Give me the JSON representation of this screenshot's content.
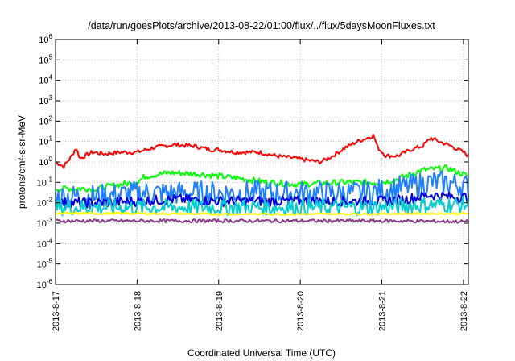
{
  "chart_data": {
    "type": "line",
    "title": "/data/run/goesPlots/archive/2013-08-22/01:00/flux/../flux/5daysMoonFluxes.txt",
    "xlabel": "Coordinated Universal Time (UTC)",
    "ylabel": "protons/cm²-s-sr-MeV",
    "yscale": "log",
    "ylim": [
      1e-06,
      1000000.0
    ],
    "xlim": [
      0,
      5.06
    ],
    "x_unit": "days since 2013-8-17 00:00 UTC",
    "x_ticks": [
      {
        "value": 0,
        "label": "2013-8-17"
      },
      {
        "value": 1,
        "label": "2013-8-18"
      },
      {
        "value": 2,
        "label": "2013-8-19"
      },
      {
        "value": 3,
        "label": "2013-8-20"
      },
      {
        "value": 4,
        "label": "2013-8-21"
      },
      {
        "value": 5,
        "label": "2013-8-22"
      }
    ],
    "y_ticks": [
      {
        "exp": "6"
      },
      {
        "exp": "5"
      },
      {
        "exp": "4"
      },
      {
        "exp": "3"
      },
      {
        "exp": "2"
      },
      {
        "exp": "1"
      },
      {
        "exp": "0"
      },
      {
        "exp": "-1"
      },
      {
        "exp": "-2"
      },
      {
        "exp": "-3"
      },
      {
        "exp": "-4"
      },
      {
        "exp": "-5"
      },
      {
        "exp": "-6"
      }
    ],
    "grid": true,
    "series": [
      {
        "color": "#ff0000",
        "noise": 0.1,
        "points": [
          [
            0,
            1.0
          ],
          [
            0.1,
            0.6
          ],
          [
            0.2,
            2.0
          ],
          [
            0.25,
            5.0
          ],
          [
            0.3,
            1.5
          ],
          [
            0.45,
            3.0
          ],
          [
            0.6,
            2.5
          ],
          [
            0.8,
            3.0
          ],
          [
            1.0,
            3.0
          ],
          [
            1.2,
            5.0
          ],
          [
            1.45,
            7.0
          ],
          [
            1.7,
            6.0
          ],
          [
            1.9,
            4.0
          ],
          [
            2.0,
            4.0
          ],
          [
            2.2,
            3.0
          ],
          [
            2.5,
            3.0
          ],
          [
            2.7,
            2.0
          ],
          [
            2.95,
            1.5
          ],
          [
            3.1,
            1.2
          ],
          [
            3.25,
            1.0
          ],
          [
            3.4,
            2.0
          ],
          [
            3.55,
            5.0
          ],
          [
            3.7,
            10.0
          ],
          [
            3.9,
            20.0
          ],
          [
            3.95,
            5.0
          ],
          [
            4.05,
            2.0
          ],
          [
            4.2,
            2.0
          ],
          [
            4.35,
            4.0
          ],
          [
            4.5,
            6.0
          ],
          [
            4.6,
            15.0
          ],
          [
            4.7,
            10.0
          ],
          [
            4.85,
            6.0
          ],
          [
            5.0,
            3.0
          ],
          [
            5.06,
            2.0
          ]
        ]
      },
      {
        "color": "#00ff00",
        "noise": 0.15,
        "points": [
          [
            0,
            0.05
          ],
          [
            0.5,
            0.05
          ],
          [
            0.8,
            0.08
          ],
          [
            1.0,
            0.1
          ],
          [
            1.1,
            0.2
          ],
          [
            1.4,
            0.3
          ],
          [
            1.8,
            0.25
          ],
          [
            2.0,
            0.2
          ],
          [
            2.3,
            0.15
          ],
          [
            2.6,
            0.1
          ],
          [
            3.0,
            0.08
          ],
          [
            3.5,
            0.1
          ],
          [
            3.8,
            0.1
          ],
          [
            4.0,
            0.1
          ],
          [
            4.2,
            0.15
          ],
          [
            4.5,
            0.4
          ],
          [
            4.8,
            0.5
          ],
          [
            5.06,
            0.2
          ]
        ]
      },
      {
        "color": "#1e7fff",
        "noise": 0.6,
        "points": [
          [
            0,
            0.02
          ],
          [
            0.5,
            0.02
          ],
          [
            1.0,
            0.03
          ],
          [
            1.5,
            0.03
          ],
          [
            2.0,
            0.03
          ],
          [
            2.5,
            0.03
          ],
          [
            3.0,
            0.03
          ],
          [
            3.5,
            0.03
          ],
          [
            3.8,
            0.03
          ],
          [
            4.0,
            0.04
          ],
          [
            4.3,
            0.06
          ],
          [
            4.6,
            0.1
          ],
          [
            4.8,
            0.1
          ],
          [
            5.06,
            0.06
          ]
        ]
      },
      {
        "color": "#0000dd",
        "noise": 0.25,
        "points": [
          [
            0,
            0.01
          ],
          [
            0.5,
            0.01
          ],
          [
            1.0,
            0.012
          ],
          [
            1.5,
            0.015
          ],
          [
            2.0,
            0.012
          ],
          [
            2.5,
            0.012
          ],
          [
            3.0,
            0.012
          ],
          [
            3.5,
            0.012
          ],
          [
            3.8,
            0.012
          ],
          [
            4.0,
            0.012
          ],
          [
            4.3,
            0.015
          ],
          [
            4.6,
            0.025
          ],
          [
            4.8,
            0.02
          ],
          [
            5.06,
            0.018
          ]
        ]
      },
      {
        "color": "#00cdcd",
        "noise": 0.4,
        "points": [
          [
            0,
            0.006
          ],
          [
            1.0,
            0.006
          ],
          [
            2.0,
            0.006
          ],
          [
            3.0,
            0.006
          ],
          [
            4.0,
            0.006
          ],
          [
            4.5,
            0.008
          ],
          [
            5.06,
            0.008
          ]
        ]
      },
      {
        "color": "#ffff00",
        "noise": 0.05,
        "points": [
          [
            0,
            0.003
          ],
          [
            1.0,
            0.003
          ],
          [
            2.0,
            0.0028
          ],
          [
            3.0,
            0.0028
          ],
          [
            4.0,
            0.0029
          ],
          [
            5.06,
            0.003
          ]
        ]
      },
      {
        "color": "#8b3a8b",
        "noise": 0.08,
        "points": [
          [
            0,
            0.0013
          ],
          [
            1.0,
            0.0013
          ],
          [
            2.0,
            0.0013
          ],
          [
            3.0,
            0.0013
          ],
          [
            4.0,
            0.0013
          ],
          [
            5.06,
            0.0012
          ]
        ]
      }
    ]
  }
}
